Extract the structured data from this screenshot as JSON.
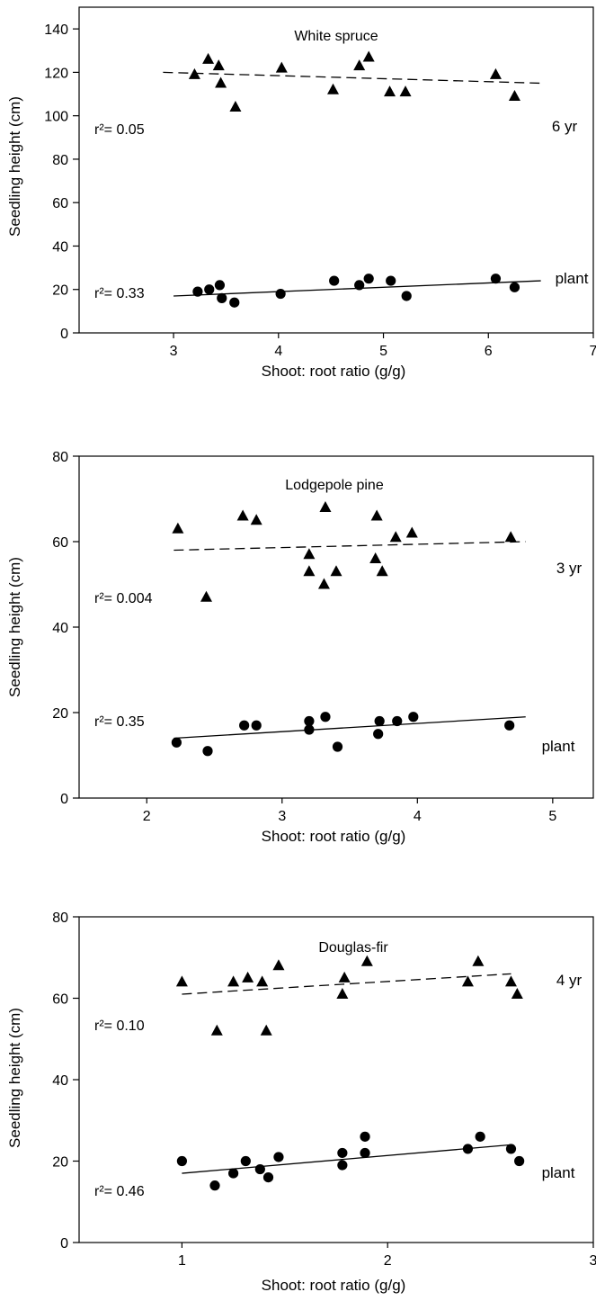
{
  "chart_data": [
    {
      "type": "scatter",
      "title": "White spruce",
      "xlabel": "Shoot: root ratio (g/g)",
      "ylabel": "Seedling height (cm)",
      "xlim": [
        2.1,
        7
      ],
      "ylim": [
        0,
        150
      ],
      "xticks": [
        3,
        4,
        5,
        6,
        7
      ],
      "yticks": [
        0,
        20,
        40,
        60,
        80,
        100,
        120,
        140
      ],
      "grid": false,
      "series": [
        {
          "name": "6 yr",
          "marker": "triangle",
          "r2": "r²= 0.05",
          "x": [
            3.2,
            3.33,
            3.43,
            3.45,
            3.59,
            4.03,
            4.52,
            4.77,
            4.86,
            5.06,
            5.21,
            6.07,
            6.25
          ],
          "y": [
            119,
            126,
            123,
            115,
            104,
            122,
            112,
            123,
            127,
            111,
            111,
            119,
            109
          ],
          "fit": [
            [
              2.9,
              120
            ],
            [
              6.5,
              115
            ]
          ]
        },
        {
          "name": "plant",
          "marker": "circle",
          "r2": "r²= 0.33",
          "x": [
            3.23,
            3.34,
            3.44,
            3.46,
            3.58,
            4.02,
            4.53,
            4.77,
            4.86,
            5.07,
            5.22,
            6.07,
            6.25
          ],
          "y": [
            19,
            20,
            22,
            16,
            14,
            18,
            24,
            22,
            25,
            24,
            17,
            25,
            21
          ],
          "fit": [
            [
              3.0,
              17
            ],
            [
              6.5,
              24
            ]
          ]
        }
      ]
    },
    {
      "type": "scatter",
      "title": "Lodgepole pine",
      "xlabel": "Shoot: root ratio (g/g)",
      "ylabel": "Seedling height (cm)",
      "xlim": [
        1.5,
        5.3
      ],
      "ylim": [
        0,
        80
      ],
      "xticks": [
        2,
        3,
        4,
        5
      ],
      "yticks": [
        0,
        20,
        40,
        60,
        80
      ],
      "grid": false,
      "series": [
        {
          "name": "3 yr",
          "marker": "triangle",
          "r2": "r²= 0.004",
          "x": [
            2.23,
            2.44,
            2.71,
            2.81,
            3.2,
            3.2,
            3.32,
            3.31,
            3.4,
            3.69,
            3.7,
            3.74,
            3.84,
            3.96,
            4.69
          ],
          "y": [
            63,
            47,
            66,
            65,
            57,
            53,
            68,
            50,
            53,
            56,
            66,
            53,
            61,
            62,
            61
          ],
          "fit": [
            [
              2.2,
              58
            ],
            [
              4.8,
              60
            ]
          ]
        },
        {
          "name": "plant",
          "marker": "circle",
          "r2": "r²= 0.35",
          "x": [
            2.22,
            2.45,
            2.72,
            2.81,
            3.2,
            3.2,
            3.32,
            3.41,
            3.71,
            3.72,
            3.85,
            3.97,
            4.68
          ],
          "y": [
            13,
            11,
            17,
            17,
            18,
            16,
            19,
            12,
            15,
            18,
            18,
            19,
            17
          ],
          "fit": [
            [
              2.2,
              14
            ],
            [
              4.8,
              19
            ]
          ]
        }
      ]
    },
    {
      "type": "scatter",
      "title": "Douglas-fir",
      "xlabel": "Shoot: root ratio (g/g)",
      "ylabel": "Seedling height (cm)",
      "xlim": [
        0.5,
        3
      ],
      "ylim": [
        0,
        80
      ],
      "xticks": [
        1,
        2,
        3
      ],
      "yticks": [
        0,
        20,
        40,
        60,
        80
      ],
      "grid": false,
      "series": [
        {
          "name": "4 yr",
          "marker": "triangle",
          "r2": "r²= 0.10",
          "x": [
            1.0,
            1.17,
            1.25,
            1.32,
            1.39,
            1.41,
            1.47,
            1.79,
            1.78,
            1.9,
            2.39,
            2.44,
            2.6,
            2.63
          ],
          "y": [
            64,
            52,
            64,
            65,
            64,
            52,
            68,
            65,
            61,
            69,
            64,
            69,
            64,
            61
          ],
          "fit": [
            [
              1.0,
              61
            ],
            [
              2.6,
              66
            ]
          ]
        },
        {
          "name": "plant",
          "marker": "circle",
          "r2": "r²= 0.46",
          "x": [
            1.0,
            1.16,
            1.25,
            1.31,
            1.38,
            1.42,
            1.47,
            1.78,
            1.78,
            1.89,
            1.89,
            2.39,
            2.45,
            2.6,
            2.64
          ],
          "y": [
            20,
            14,
            17,
            20,
            18,
            16,
            21,
            22,
            19,
            26,
            22,
            23,
            26,
            23,
            20
          ],
          "fit": [
            [
              1.0,
              17
            ],
            [
              2.6,
              24
            ]
          ]
        }
      ]
    }
  ]
}
